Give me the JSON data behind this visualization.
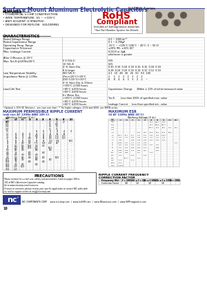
{
  "title_bold": "Surface Mount Aluminum Electrolytic Capacitors",
  "title_normal": "NACEW Series",
  "rohs_line1": "RoHS",
  "rohs_line2": "Compliant",
  "rohs_line3": "Includes all homogeneous materials",
  "rohs_line4": "*See Part Number System for Details",
  "ripple_title": "MAXIMUM PERMISSIBLE RIPPLE CURRENT",
  "ripple_subtitle": "(mA rms AT 120Hz AND 105°C)",
  "esr_title": "MAXIMUM ESR",
  "esr_subtitle": "(Ω AT 120Hz AND 20°C)",
  "footer": "NIC COMPONENTS CORP.    www.niccomp.com  |  www.IceESR.com  |  www.NFpassives.com  |  www.SMTmagnetics.com",
  "page_num": "10",
  "bg_color": "#ffffff",
  "title_blue": "#2b3990",
  "dark_blue": "#1a3a6b"
}
